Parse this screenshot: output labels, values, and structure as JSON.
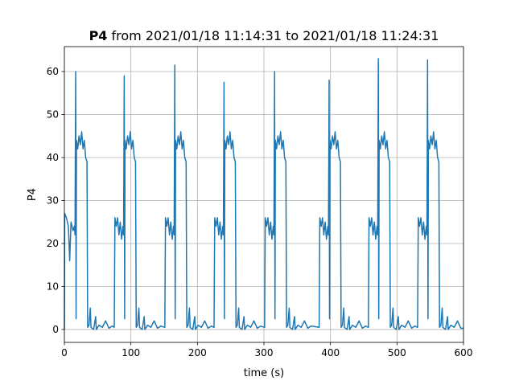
{
  "chart_data": {
    "type": "line",
    "title_parts": {
      "bold": "P4",
      "rest": "from 2021/01/18 11:14:31 to 2021/01/18 11:24:31"
    },
    "xlabel": "time (s)",
    "ylabel": "P4",
    "xlim": [
      0,
      600
    ],
    "ylim": [
      -3,
      65.8
    ],
    "xticks": [
      0,
      100,
      200,
      300,
      400,
      500,
      600
    ],
    "yticks": [
      0,
      10,
      20,
      30,
      40,
      50,
      60
    ],
    "grid": true,
    "x": [
      0,
      0.5,
      3,
      6,
      8,
      10,
      13,
      15,
      16,
      17,
      17.6,
      18.2,
      20,
      22,
      24,
      26,
      28,
      30,
      32,
      34,
      35,
      37,
      39,
      40,
      44,
      47,
      48,
      52,
      57,
      62,
      67,
      72,
      75,
      76,
      78,
      80,
      82,
      84,
      86,
      88,
      89,
      90,
      90.6,
      91.2,
      93,
      95,
      97,
      99,
      101,
      103,
      105,
      107,
      108,
      110,
      112,
      113,
      117,
      120,
      121,
      125,
      130,
      135,
      140,
      145,
      151,
      152,
      154,
      156,
      158,
      160,
      162,
      164,
      165,
      166,
      166.6,
      167.2,
      169,
      171,
      173,
      175,
      177,
      179,
      181,
      183,
      184,
      186,
      188,
      189,
      193,
      196,
      197,
      201,
      206,
      211,
      216,
      221,
      225,
      226,
      228,
      230,
      232,
      234,
      236,
      238,
      239,
      240,
      240.6,
      241.2,
      243,
      245,
      247,
      249,
      251,
      253,
      255,
      257,
      258,
      260,
      262,
      263,
      267,
      270,
      271,
      275,
      280,
      285,
      290,
      295,
      301,
      302,
      304,
      306,
      308,
      310,
      312,
      314,
      315,
      316,
      316.6,
      317.2,
      319,
      321,
      323,
      325,
      327,
      329,
      331,
      333,
      334,
      336,
      338,
      339,
      343,
      346,
      347,
      351,
      356,
      361,
      366,
      371,
      383,
      384,
      386,
      388,
      390,
      392,
      394,
      396,
      397,
      398,
      398.6,
      399.2,
      401,
      403,
      405,
      407,
      409,
      411,
      413,
      415,
      416,
      418,
      420,
      421,
      425,
      428,
      429,
      433,
      438,
      443,
      448,
      453,
      457,
      458,
      460,
      462,
      464,
      466,
      468,
      470,
      471,
      472,
      472.6,
      473.2,
      475,
      477,
      479,
      481,
      483,
      485,
      487,
      489,
      490,
      492,
      494,
      495,
      499,
      502,
      503,
      507,
      512,
      517,
      522,
      527,
      531,
      532,
      534,
      536,
      538,
      540,
      542,
      544,
      545,
      546,
      546.6,
      547.2,
      549,
      551,
      553,
      555,
      557,
      559,
      561,
      563,
      564,
      566,
      568,
      569,
      573,
      576,
      577,
      581,
      586,
      591,
      596,
      600
    ],
    "series": [
      {
        "name": "P4",
        "color": "#1f77b4",
        "values": [
          0,
          27,
          26,
          24,
          16,
          25,
          23,
          24,
          22,
          60,
          2.5,
          44,
          42,
          45,
          43,
          46,
          42,
          44,
          40,
          39,
          0.5,
          1,
          5,
          0.5,
          0,
          3,
          0,
          1,
          0.5,
          2,
          0.3,
          0.8,
          0.5,
          26,
          24,
          26,
          22,
          25,
          21,
          24,
          22,
          59,
          2.5,
          44,
          42,
          45,
          43,
          46,
          42,
          44,
          40,
          39,
          0.5,
          1,
          5,
          0.5,
          0,
          3,
          0,
          1,
          0.5,
          2,
          0.3,
          0.8,
          0.5,
          26,
          24,
          26,
          22,
          25,
          21,
          24,
          22,
          61.5,
          2.5,
          44,
          42,
          45,
          43,
          46,
          42,
          44,
          40,
          39,
          0.5,
          1,
          5,
          0.5,
          0,
          3,
          0,
          1,
          0.5,
          2,
          0.3,
          0.8,
          0.5,
          26,
          24,
          26,
          22,
          25,
          21,
          24,
          22,
          57.5,
          2.5,
          44,
          42,
          45,
          43,
          46,
          42,
          44,
          40,
          39,
          0.5,
          1,
          5,
          0.5,
          0,
          3,
          0,
          1,
          0.5,
          2,
          0.3,
          0.8,
          0.5,
          26,
          24,
          26,
          22,
          25,
          21,
          24,
          22,
          60,
          2.5,
          44,
          42,
          45,
          43,
          46,
          42,
          44,
          40,
          39,
          0.5,
          1,
          5,
          0.5,
          0,
          3,
          0,
          1,
          0.5,
          2,
          0.3,
          0.8,
          0.5,
          26,
          24,
          26,
          22,
          25,
          21,
          24,
          22,
          58,
          2.5,
          44,
          42,
          45,
          43,
          46,
          42,
          44,
          40,
          39,
          0.5,
          1,
          5,
          0.5,
          0,
          3,
          0,
          1,
          0.5,
          2,
          0.3,
          0.8,
          0.5,
          26,
          24,
          26,
          22,
          25,
          21,
          24,
          22,
          63,
          2.5,
          44,
          42,
          45,
          43,
          46,
          42,
          44,
          40,
          39,
          0.5,
          1,
          5,
          0.5,
          0,
          3,
          0,
          1,
          0.5,
          2,
          0.3,
          0.8,
          0.5,
          26,
          24,
          26,
          22,
          25,
          21,
          24,
          22,
          62.7,
          2.5,
          44,
          42,
          45,
          43,
          46,
          42,
          44,
          40,
          39,
          0.5,
          1,
          5,
          0.5,
          0,
          3,
          0,
          1,
          0.5,
          2,
          0.3,
          0.3
        ]
      }
    ]
  }
}
